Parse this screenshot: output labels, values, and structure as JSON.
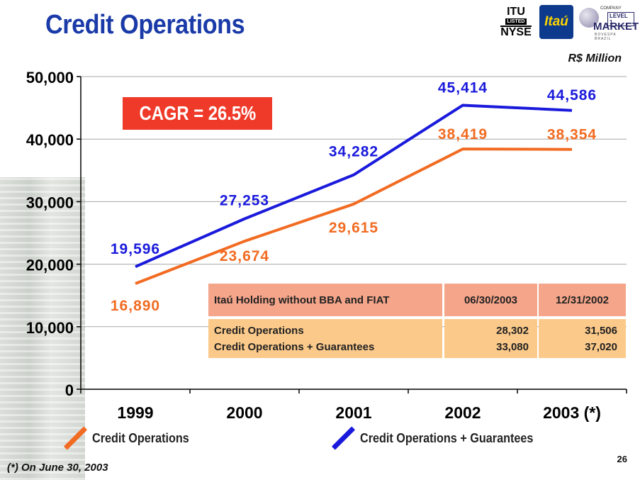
{
  "slide": {
    "title": "Credit Operations",
    "unit": "R$ Million",
    "cagr": "CAGR = 26.5%",
    "footnote": "(*) On June 30, 2003",
    "page_number": "26"
  },
  "logos": {
    "itu_line1": "ITU",
    "itu_line2": "LISTED",
    "itu_line3": "NYSE",
    "itau": "Itaú",
    "level1_company": "COMPANY",
    "level1_level": "LEVEL 1",
    "level1_market": "MARKET",
    "level1_bovespa": "BOVESPA BRAZIL"
  },
  "summary_table": {
    "header": [
      "Itaú Holding without BBA and FIAT",
      "06/30/2003",
      "12/31/2002"
    ],
    "rows": [
      [
        "Credit Operations",
        "28,302",
        "31,506"
      ],
      [
        "Credit Operations + Guarantees",
        "33,080",
        "37,020"
      ]
    ]
  },
  "legend": {
    "credit_operations": "Credit Operations",
    "credit_operations_guarantees": "Credit Operations + Guarantees"
  },
  "chart_data": {
    "type": "line",
    "categories": [
      "1999",
      "2000",
      "2001",
      "2002",
      "2003 (*)"
    ],
    "ylim": [
      0,
      50000
    ],
    "yticks": [
      "0",
      "10,000",
      "20,000",
      "30,000",
      "40,000",
      "50,000"
    ],
    "grid": true,
    "series": [
      {
        "name": "Credit Operations",
        "color": "#f26b22",
        "values": [
          16890,
          23674,
          29615,
          38419,
          38354
        ],
        "labels": [
          "16,890",
          "23,674",
          "29,615",
          "38,419",
          "38,354"
        ]
      },
      {
        "name": "Credit Operations + Guarantees",
        "color": "#1a1adc",
        "values": [
          19596,
          27253,
          34282,
          45414,
          44586
        ],
        "labels": [
          "19,596",
          "27,253",
          "34,282",
          "45,414",
          "44,586"
        ]
      }
    ]
  }
}
